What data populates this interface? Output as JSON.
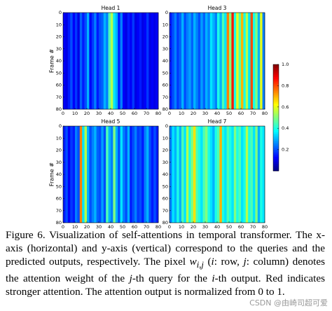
{
  "figure": {
    "type": "heatmap",
    "panels": [
      {
        "title": "Head 1",
        "ylabel": "Frame #",
        "xlim": [
          0,
          80
        ],
        "ylim": [
          0,
          80
        ],
        "xticks": [
          0,
          10,
          20,
          30,
          40,
          50,
          60,
          70,
          80
        ],
        "yticks": [
          0,
          10,
          20,
          30,
          40,
          50,
          60,
          70,
          80
        ],
        "columns": [
          0.12,
          0.1,
          0.15,
          0.2,
          0.12,
          0.18,
          0.1,
          0.22,
          0.15,
          0.2,
          0.3,
          0.12,
          0.18,
          0.25,
          0.15,
          0.2,
          0.22,
          0.3,
          0.25,
          0.45,
          0.55,
          0.35,
          0.3,
          0.15,
          0.25,
          0.12,
          0.1,
          0.15,
          0.12,
          0.18,
          0.1,
          0.12,
          0.15,
          0.1,
          0.12,
          0.18,
          0.1,
          0.12,
          0.1,
          0.12
        ]
      },
      {
        "title": "Head 3",
        "xlim": [
          0,
          80
        ],
        "ylim": [
          0,
          80
        ],
        "xticks": [
          0,
          10,
          20,
          30,
          40,
          50,
          60,
          70,
          80
        ],
        "yticks": [
          0,
          10,
          20,
          30,
          40,
          50,
          60,
          70,
          80
        ],
        "columns": [
          0.15,
          0.2,
          0.25,
          0.18,
          0.22,
          0.3,
          0.2,
          0.25,
          0.28,
          0.22,
          0.3,
          0.25,
          0.2,
          0.28,
          0.22,
          0.3,
          0.25,
          0.35,
          0.3,
          0.25,
          0.4,
          0.3,
          0.45,
          0.35,
          0.75,
          0.5,
          0.85,
          0.4,
          0.6,
          0.45,
          0.7,
          0.4,
          0.55,
          0.35,
          0.8,
          0.4,
          0.5,
          0.3,
          0.6,
          0.25
        ]
      },
      {
        "title": "Head 5",
        "ylabel": "Frame #",
        "xlim": [
          0,
          80
        ],
        "ylim": [
          0,
          80
        ],
        "xticks": [
          0,
          10,
          20,
          30,
          40,
          50,
          60,
          70,
          80
        ],
        "yticks": [
          0,
          10,
          20,
          30,
          40,
          50,
          60,
          70,
          80
        ],
        "columns": [
          0.15,
          0.2,
          0.12,
          0.18,
          0.15,
          0.25,
          0.2,
          0.75,
          0.35,
          0.55,
          0.3,
          0.2,
          0.25,
          0.3,
          0.22,
          0.2,
          0.28,
          0.2,
          0.45,
          0.3,
          0.25,
          0.5,
          0.3,
          0.2,
          0.35,
          0.25,
          0.2,
          0.3,
          0.15,
          0.2,
          0.25,
          0.18,
          0.2,
          0.15,
          0.25,
          0.3,
          0.2,
          0.15,
          0.2,
          0.15
        ]
      },
      {
        "title": "Head 7",
        "xlim": [
          0,
          80
        ],
        "ylim": [
          0,
          80
        ],
        "xticks": [
          0,
          10,
          20,
          30,
          40,
          50,
          60,
          70,
          80
        ],
        "yticks": [
          0,
          10,
          20,
          30,
          40,
          50,
          60,
          70,
          80
        ],
        "columns": [
          0.25,
          0.35,
          0.3,
          0.4,
          0.3,
          0.45,
          0.35,
          0.55,
          0.4,
          0.5,
          0.65,
          0.45,
          0.4,
          0.35,
          0.45,
          0.5,
          0.4,
          0.35,
          0.3,
          0.4,
          0.45,
          0.7,
          0.4,
          0.35,
          0.45,
          0.4,
          0.35,
          0.5,
          0.4,
          0.45,
          0.35,
          0.4,
          0.55,
          0.4,
          0.45,
          0.35,
          0.5,
          0.3,
          0.4,
          0.35
        ]
      }
    ],
    "yaxis_reversed": true,
    "colormap": "jet",
    "colorbar": {
      "lim": [
        0,
        1
      ],
      "ticks": [
        {
          "value": 1,
          "label": "1.0"
        },
        0.8,
        0.6,
        0.4,
        0.2
      ]
    }
  },
  "caption": [
    "Figure 6. Visualization of self-attentions in temporal transformer. The x-axis (horizontal) and y-axis (vertical) correspond to the queries and the predicted outputs, respectively. The pixel ",
    "w",
    "i,j",
    " (",
    "i",
    ": row, ",
    "j",
    ": column) denotes the attention weight of the ",
    "j",
    "-th query for the ",
    "i",
    "-th output. Red indicates stronger attention. The attention output is normalized from 0 to 1."
  ],
  "watermark": "CSDN @由崎司超可爱"
}
